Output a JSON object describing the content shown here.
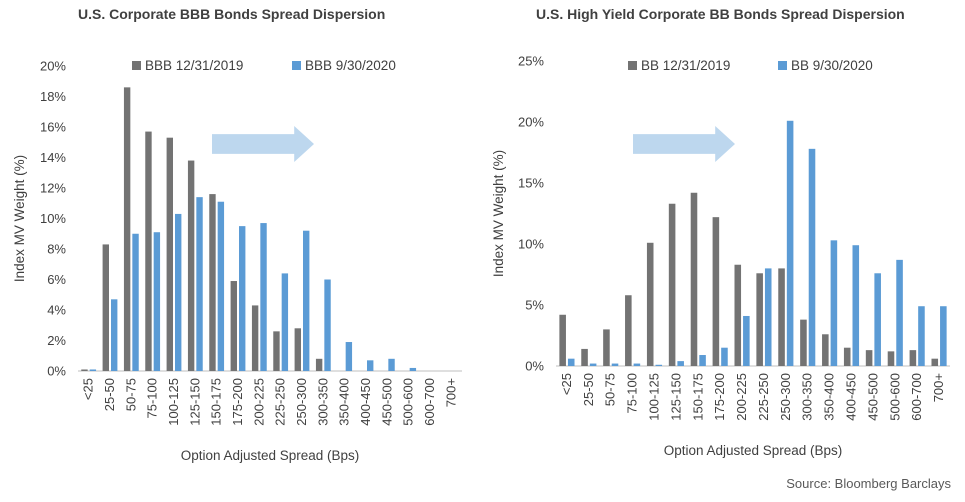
{
  "source": "Source: Bloomberg Barclays",
  "colors": {
    "series1": "#737373",
    "series2": "#5b9bd5",
    "arrow": "#bdd7ee",
    "axis": "#bfbfbf"
  },
  "chart_data": [
    {
      "type": "bar",
      "title": "U.S. Corporate BBB Bonds Spread Dispersion",
      "xlabel": "Option Adjusted Spread (Bps)",
      "ylabel": "Index MV Weight (%)",
      "ylim": [
        0,
        20
      ],
      "yticks": [
        "0%",
        "2%",
        "4%",
        "6%",
        "8%",
        "10%",
        "12%",
        "14%",
        "16%",
        "18%",
        "20%"
      ],
      "legend_position": "top",
      "categories": [
        "<25",
        "25-50",
        "50-75",
        "75-100",
        "100-125",
        "125-150",
        "150-175",
        "175-200",
        "200-225",
        "225-250",
        "250-300",
        "300-350",
        "350-400",
        "400-450",
        "450-500",
        "500-600",
        "600-700",
        "700+"
      ],
      "series": [
        {
          "name": "BBB 12/31/2019",
          "values": [
            0.1,
            8.3,
            18.6,
            15.7,
            15.3,
            13.8,
            11.6,
            5.9,
            4.3,
            2.6,
            2.8,
            0.8,
            0,
            0,
            0,
            0,
            0,
            0
          ]
        },
        {
          "name": "BBB 9/30/2020",
          "values": [
            0.1,
            4.7,
            9.0,
            9.1,
            10.3,
            11.4,
            11.1,
            9.5,
            9.7,
            6.4,
            9.2,
            6.0,
            1.9,
            0.7,
            0.8,
            0.2,
            0,
            0
          ]
        }
      ]
    },
    {
      "type": "bar",
      "title": "U.S. High Yield Corporate BB Bonds Spread Dispersion",
      "xlabel": "Option Adjusted Spread (Bps)",
      "ylabel": "Index MV Weight (%)",
      "ylim": [
        0,
        25
      ],
      "yticks": [
        "0%",
        "5%",
        "10%",
        "15%",
        "20%",
        "25%"
      ],
      "legend_position": "top",
      "categories": [
        "<25",
        "25-50",
        "50-75",
        "75-100",
        "100-125",
        "125-150",
        "150-175",
        "175-200",
        "200-225",
        "225-250",
        "250-300",
        "300-350",
        "350-400",
        "400-450",
        "450-500",
        "500-600",
        "600-700",
        "700+"
      ],
      "series": [
        {
          "name": "BB 12/31/2019",
          "values": [
            4.2,
            1.4,
            3.0,
            5.8,
            10.1,
            13.3,
            14.2,
            12.2,
            8.3,
            7.6,
            8.0,
            3.8,
            2.6,
            1.5,
            1.3,
            1.2,
            1.3,
            0.6
          ]
        },
        {
          "name": "BB 9/30/2020",
          "values": [
            0.6,
            0.2,
            0.2,
            0.2,
            0.1,
            0.4,
            0.9,
            1.5,
            4.1,
            8.0,
            20.1,
            17.8,
            10.3,
            9.9,
            7.6,
            8.7,
            4.9,
            4.9
          ]
        }
      ]
    }
  ]
}
